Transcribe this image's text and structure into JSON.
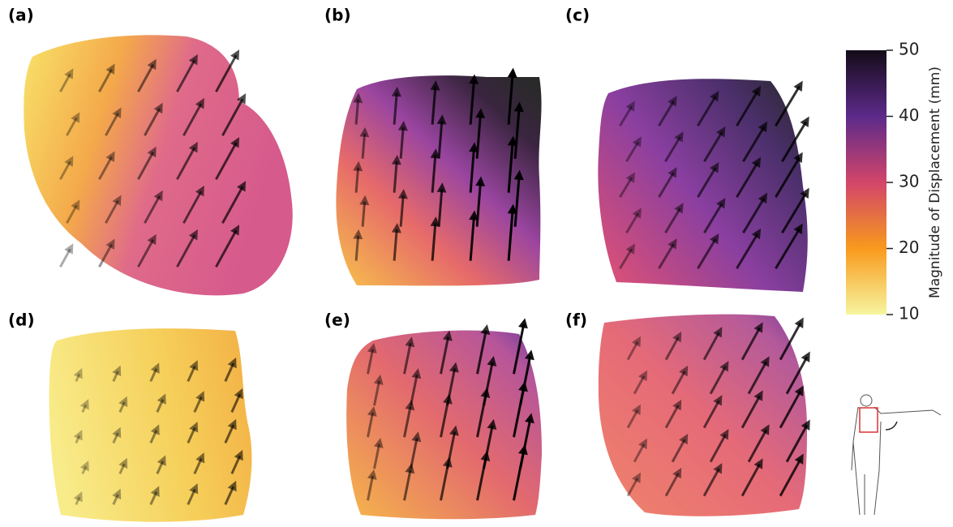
{
  "panels": [
    {
      "label": "(a)"
    },
    {
      "label": "(b)"
    },
    {
      "label": "(c)"
    },
    {
      "label": "(d)"
    },
    {
      "label": "(e)"
    },
    {
      "label": "(f)"
    }
  ],
  "colorbar": {
    "title": "Magnitude of Displacement (mm)",
    "lim": [
      10,
      50
    ],
    "ticks": [
      10,
      20,
      30,
      40,
      50
    ]
  }
}
